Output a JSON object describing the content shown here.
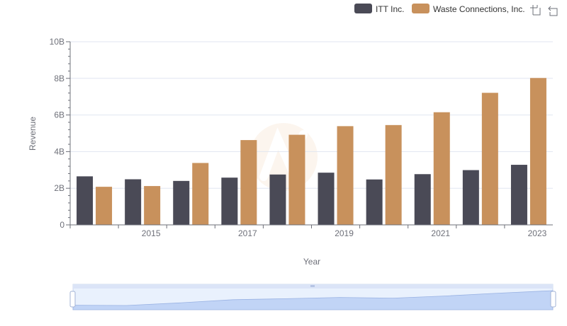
{
  "chart_data": {
    "type": "bar",
    "title": "",
    "xlabel": "Year",
    "ylabel": "Revenue",
    "ylim": [
      0,
      10000000000
    ],
    "y_ticks": [
      "0",
      "2B",
      "4B",
      "6B",
      "8B",
      "10B"
    ],
    "y_tick_values": [
      0,
      2000000000,
      4000000000,
      6000000000,
      8000000000,
      10000000000
    ],
    "categories": [
      "2014",
      "2015",
      "2016",
      "2017",
      "2018",
      "2019",
      "2020",
      "2021",
      "2022",
      "2023"
    ],
    "x_tick_labels": [
      "2015",
      "2017",
      "2019",
      "2021",
      "2023"
    ],
    "grid": true,
    "legend_position": "top-right",
    "series": [
      {
        "name": "ITT Inc.",
        "color": "#4a4a56",
        "values": [
          2650000000,
          2490000000,
          2400000000,
          2580000000,
          2750000000,
          2850000000,
          2480000000,
          2770000000,
          2990000000,
          3280000000
        ]
      },
      {
        "name": "Waste Connections, Inc.",
        "color": "#c8915c",
        "values": [
          2080000000,
          2120000000,
          3380000000,
          4630000000,
          4920000000,
          5390000000,
          5450000000,
          6150000000,
          7210000000,
          8020000000
        ]
      }
    ]
  },
  "toolbar": {
    "zoom_icon": "data-zoom-icon",
    "restore_icon": "restore-icon"
  }
}
